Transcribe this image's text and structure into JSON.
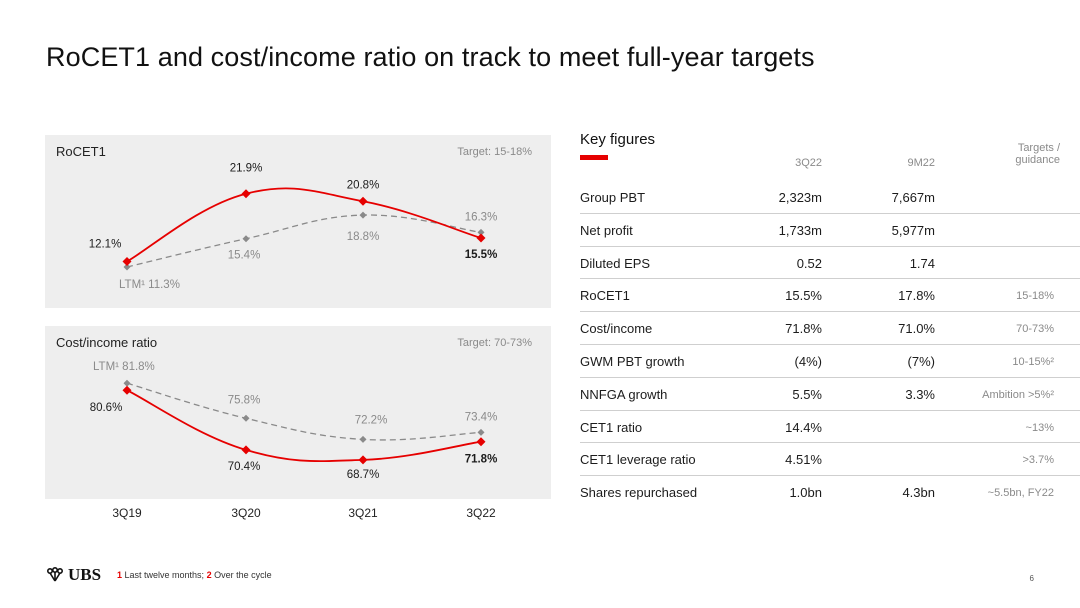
{
  "title": "RoCET1 and cost/income ratio on track to meet full-year targets",
  "chart_data": [
    {
      "type": "line",
      "title": "RoCET1",
      "target": "Target: 15-18%",
      "categories": [
        "3Q19",
        "3Q20",
        "3Q21",
        "3Q22"
      ],
      "series": [
        {
          "values": [
            12.1,
            21.9,
            20.8,
            15.5
          ],
          "labels": [
            "12.1%",
            "21.9%",
            "20.8%",
            "15.5%"
          ],
          "color": "#e60000",
          "style": "solid"
        },
        {
          "values": [
            11.3,
            15.4,
            18.8,
            16.3
          ],
          "labels": [
            "LTM¹ 11.3%",
            "15.4%",
            "18.8%",
            "16.3%"
          ],
          "color": "#8a8a8a",
          "style": "dashed"
        }
      ]
    },
    {
      "type": "line",
      "title": "Cost/income ratio",
      "target": "Target: 70-73%",
      "categories": [
        "3Q19",
        "3Q20",
        "3Q21",
        "3Q22"
      ],
      "series": [
        {
          "values": [
            80.6,
            70.4,
            68.7,
            71.8
          ],
          "labels": [
            "80.6%",
            "70.4%",
            "68.7%",
            "71.8%"
          ],
          "color": "#e60000",
          "style": "solid"
        },
        {
          "values": [
            81.8,
            75.8,
            72.2,
            73.4
          ],
          "labels": [
            "LTM¹ 81.8%",
            "75.8%",
            "72.2%",
            "73.4%"
          ],
          "color": "#8a8a8a",
          "style": "dashed"
        }
      ]
    }
  ],
  "key_figures": {
    "title": "Key figures",
    "col_3q22": "3Q22",
    "col_9m22": "9M22",
    "col_targets_1": "Targets /",
    "col_targets_2": "guidance",
    "rows": [
      {
        "label": "Group PBT",
        "q": "2,323m",
        "m9": "7,667m",
        "target": ""
      },
      {
        "label": "Net profit",
        "q": "1,733m",
        "m9": "5,977m",
        "target": ""
      },
      {
        "label": "Diluted EPS",
        "q": "0.52",
        "m9": "1.74",
        "target": ""
      },
      {
        "label": "RoCET1",
        "q": "15.5%",
        "m9": "17.8%",
        "target": "15-18%"
      },
      {
        "label": "Cost/income",
        "q": "71.8%",
        "m9": "71.0%",
        "target": "70-73%"
      },
      {
        "label": "GWM PBT growth",
        "q": "(4%)",
        "m9": "(7%)",
        "target": "10-15%²"
      },
      {
        "label": "NNFGA growth",
        "q": "5.5%",
        "m9": "3.3%",
        "target": "Ambition >5%²"
      },
      {
        "label": "CET1 ratio",
        "q": "14.4%",
        "m9": "",
        "target": "~13%"
      },
      {
        "label": "CET1 leverage ratio",
        "q": "4.51%",
        "m9": "",
        "target": ">3.7%"
      },
      {
        "label": "Shares repurchased",
        "q": "1.0bn",
        "m9": "4.3bn",
        "target": "~5.5bn, FY22"
      }
    ]
  },
  "footer": {
    "logo": "UBS",
    "fn1_num": "1",
    "fn1_text": " Last twelve months; ",
    "fn2_num": "2",
    "fn2_text": " Over the cycle",
    "page": "6"
  },
  "colors": {
    "accent": "#e60000",
    "ltm": "#8a8a8a",
    "panel": "#eeeeee"
  }
}
